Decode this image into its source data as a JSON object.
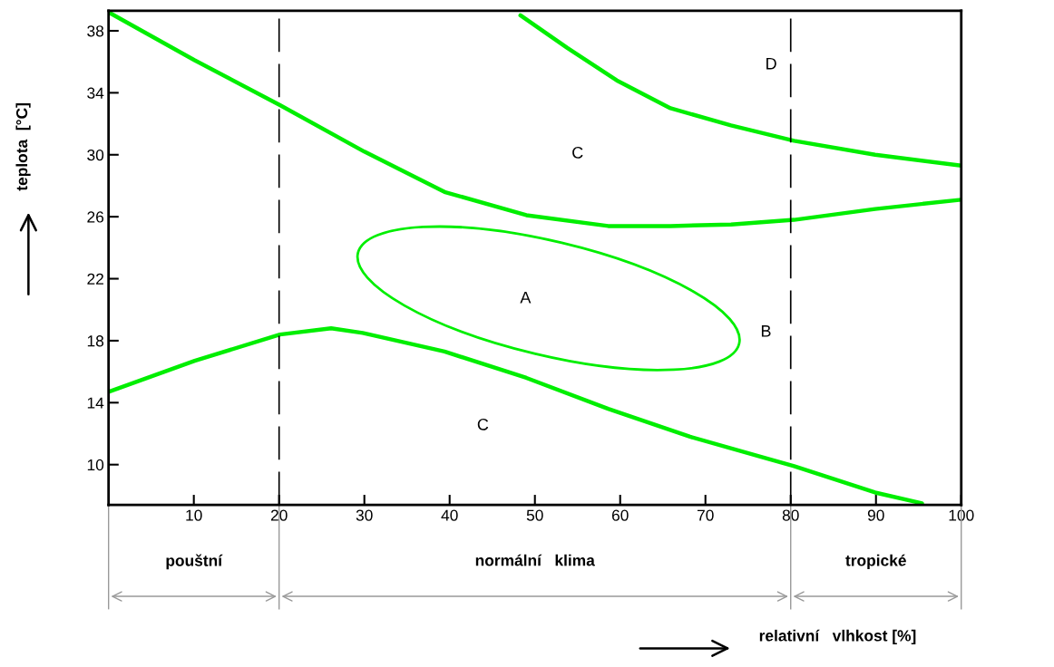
{
  "chart_data": {
    "type": "line",
    "ylabel": "teplota  [°C]",
    "xlim": [
      0,
      100
    ],
    "ylim": [
      7.4,
      39.3
    ],
    "xticks": [
      10,
      20,
      30,
      40,
      50,
      60,
      70,
      80,
      90,
      100
    ],
    "yticks": [
      10,
      14,
      18,
      22,
      26,
      30,
      34,
      38
    ],
    "grid": false,
    "legend": false,
    "marker": "none",
    "line_style": "solid",
    "series": [
      {
        "color": "#00ee00",
        "x": [
          0,
          10.1,
          20.1,
          30.0,
          39.4,
          49.0,
          58.6,
          65.9,
          73.0,
          80.4,
          89.9,
          100
        ],
        "values": [
          39.2,
          36.1,
          33.2,
          30.2,
          27.6,
          26.1,
          25.4,
          25.4,
          25.5,
          25.8,
          26.5,
          27.1
        ]
      },
      {
        "color": "#00ee00",
        "x": [
          48.3,
          53.8,
          59.6,
          65.9,
          73.0,
          80.4,
          89.9,
          100
        ],
        "values": [
          39.0,
          36.9,
          34.8,
          33.0,
          31.9,
          30.9,
          30.0,
          29.3
        ]
      },
      {
        "color": "#00ee00",
        "x": [
          0,
          10.1,
          20.1,
          26.1,
          29.8,
          39.4,
          49.0,
          58.6,
          68.2,
          80.4,
          89.9,
          95.4
        ],
        "values": [
          14.7,
          16.7,
          18.4,
          18.8,
          18.5,
          17.3,
          15.6,
          13.6,
          11.8,
          9.9,
          8.2,
          7.5
        ]
      }
    ],
    "ref_lines": [
      {
        "axis": "x",
        "value": 20,
        "color": "#000000",
        "line_style": "dashed"
      },
      {
        "axis": "x",
        "value": 80,
        "color": "#000000",
        "line_style": "dashed"
      }
    ],
    "annotations": [
      "D",
      "C",
      "A",
      "B",
      "C",
      "pouštní",
      "normální   klima",
      "tropické",
      "relativní   vlhkost [%]"
    ]
  }
}
